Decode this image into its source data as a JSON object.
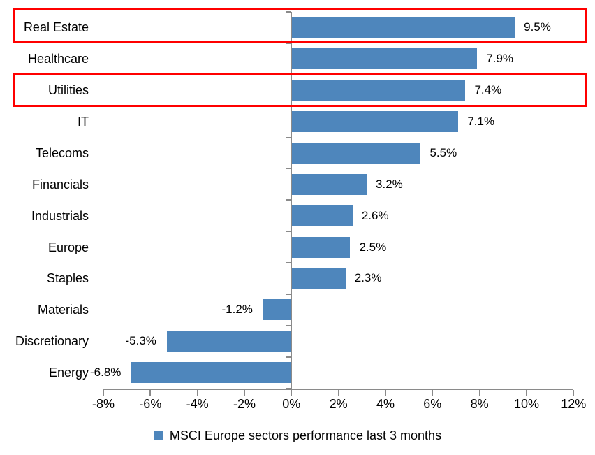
{
  "chart_data": {
    "type": "bar",
    "orientation": "horizontal",
    "categories": [
      "Real Estate",
      "Healthcare",
      "Utilities",
      "IT",
      "Telecoms",
      "Financials",
      "Industrials",
      "Europe",
      "Staples",
      "Materials",
      "Discretionary",
      "Energy"
    ],
    "values": [
      9.5,
      7.9,
      7.4,
      7.1,
      5.5,
      3.2,
      2.6,
      2.5,
      2.3,
      -1.2,
      -5.3,
      -6.8
    ],
    "value_labels": [
      "9.5%",
      "7.9%",
      "7.4%",
      "7.1%",
      "5.5%",
      "3.2%",
      "2.6%",
      "2.5%",
      "2.3%",
      "-1.2%",
      "-5.3%",
      "-6.8%"
    ],
    "xlim": [
      -8,
      12
    ],
    "x_tick_step": 2,
    "x_tick_labels": [
      "-8%",
      "-6%",
      "-4%",
      "-2%",
      "0%",
      "2%",
      "4%",
      "6%",
      "8%",
      "10%",
      "12%"
    ],
    "legend": "MSCI Europe sectors performance last 3 months",
    "legend_position": "bottom",
    "grid": "off",
    "bar_color": "#4e86bc",
    "axis_color": "#8a8a8a",
    "text_color": "#000000",
    "highlight_color": "#ff0000",
    "highlighted_categories": [
      "Real Estate",
      "Utilities"
    ]
  }
}
